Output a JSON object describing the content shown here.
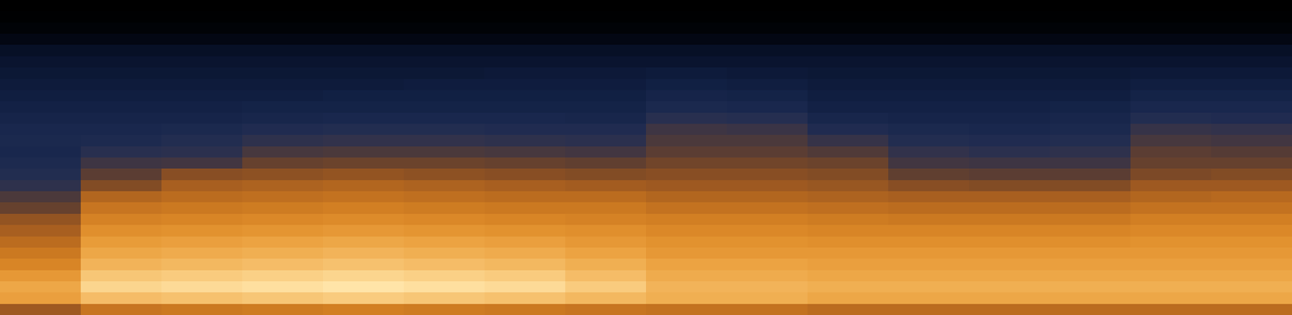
{
  "chart_data": {
    "type": "heatmap",
    "tick_labels": false,
    "cells": [
      [
        0.0,
        0.0,
        0.0,
        0.0,
        0.0,
        0.0,
        0.0,
        0.0,
        0.0,
        0.0,
        0.0,
        0.0,
        0.0,
        0.0,
        0.0,
        0.0
      ],
      [
        0.01,
        0.01,
        0.01,
        0.01,
        0.01,
        0.01,
        0.01,
        0.01,
        0.01,
        0.01,
        0.01,
        0.01,
        0.01,
        0.01,
        0.01,
        0.01
      ],
      [
        0.03,
        0.03,
        0.03,
        0.03,
        0.03,
        0.03,
        0.03,
        0.03,
        0.03,
        0.03,
        0.03,
        0.03,
        0.03,
        0.03,
        0.03,
        0.03
      ],
      [
        0.08,
        0.08,
        0.08,
        0.08,
        0.08,
        0.08,
        0.08,
        0.08,
        0.08,
        0.08,
        0.08,
        0.08,
        0.08,
        0.08,
        0.08,
        0.08
      ],
      [
        0.15,
        0.15,
        0.15,
        0.15,
        0.15,
        0.15,
        0.15,
        0.15,
        0.15,
        0.15,
        0.15,
        0.15,
        0.15,
        0.15,
        0.15,
        0.15
      ],
      [
        0.18,
        0.18,
        0.18,
        0.18,
        0.18,
        0.18,
        0.18,
        0.18,
        0.18,
        0.18,
        0.18,
        0.18,
        0.18,
        0.18,
        0.18,
        0.18
      ],
      [
        0.2,
        0.2,
        0.2,
        0.2,
        0.2,
        0.2,
        0.21,
        0.21,
        0.22,
        0.21,
        0.2,
        0.2,
        0.2,
        0.2,
        0.21,
        0.21
      ],
      [
        0.22,
        0.22,
        0.22,
        0.22,
        0.22,
        0.23,
        0.23,
        0.23,
        0.25,
        0.24,
        0.22,
        0.22,
        0.22,
        0.22,
        0.24,
        0.24
      ],
      [
        0.24,
        0.24,
        0.24,
        0.24,
        0.25,
        0.25,
        0.25,
        0.25,
        0.28,
        0.27,
        0.24,
        0.24,
        0.24,
        0.24,
        0.27,
        0.27
      ],
      [
        0.26,
        0.26,
        0.26,
        0.27,
        0.27,
        0.27,
        0.27,
        0.27,
        0.31,
        0.3,
        0.26,
        0.26,
        0.26,
        0.27,
        0.3,
        0.3
      ],
      [
        0.28,
        0.28,
        0.28,
        0.29,
        0.3,
        0.3,
        0.3,
        0.29,
        0.36,
        0.35,
        0.29,
        0.28,
        0.28,
        0.29,
        0.34,
        0.33
      ],
      [
        0.3,
        0.3,
        0.31,
        0.33,
        0.34,
        0.34,
        0.33,
        0.33,
        0.42,
        0.41,
        0.33,
        0.31,
        0.3,
        0.31,
        0.4,
        0.39
      ],
      [
        0.31,
        0.32,
        0.34,
        0.38,
        0.39,
        0.39,
        0.38,
        0.37,
        0.45,
        0.45,
        0.4,
        0.34,
        0.33,
        0.34,
        0.44,
        0.43
      ],
      [
        0.3,
        0.36,
        0.37,
        0.44,
        0.45,
        0.45,
        0.44,
        0.43,
        0.48,
        0.48,
        0.46,
        0.39,
        0.37,
        0.38,
        0.48,
        0.47
      ],
      [
        0.32,
        0.42,
        0.43,
        0.5,
        0.51,
        0.51,
        0.5,
        0.49,
        0.52,
        0.52,
        0.51,
        0.43,
        0.42,
        0.42,
        0.5,
        0.5
      ],
      [
        0.34,
        0.48,
        0.56,
        0.57,
        0.58,
        0.57,
        0.56,
        0.55,
        0.56,
        0.56,
        0.55,
        0.49,
        0.48,
        0.48,
        0.54,
        0.55
      ],
      [
        0.38,
        0.55,
        0.62,
        0.63,
        0.64,
        0.63,
        0.62,
        0.61,
        0.6,
        0.6,
        0.59,
        0.56,
        0.55,
        0.55,
        0.6,
        0.6
      ],
      [
        0.45,
        0.64,
        0.66,
        0.67,
        0.68,
        0.67,
        0.66,
        0.66,
        0.64,
        0.64,
        0.63,
        0.62,
        0.62,
        0.62,
        0.64,
        0.65
      ],
      [
        0.5,
        0.69,
        0.7,
        0.71,
        0.72,
        0.71,
        0.7,
        0.7,
        0.68,
        0.68,
        0.67,
        0.66,
        0.66,
        0.66,
        0.68,
        0.68
      ],
      [
        0.58,
        0.73,
        0.74,
        0.75,
        0.76,
        0.75,
        0.74,
        0.73,
        0.72,
        0.72,
        0.71,
        0.7,
        0.7,
        0.7,
        0.72,
        0.72
      ],
      [
        0.62,
        0.77,
        0.78,
        0.79,
        0.8,
        0.79,
        0.78,
        0.77,
        0.75,
        0.75,
        0.74,
        0.74,
        0.74,
        0.74,
        0.75,
        0.75
      ],
      [
        0.66,
        0.81,
        0.82,
        0.83,
        0.84,
        0.83,
        0.82,
        0.8,
        0.78,
        0.78,
        0.77,
        0.77,
        0.77,
        0.77,
        0.78,
        0.78
      ],
      [
        0.7,
        0.84,
        0.85,
        0.86,
        0.87,
        0.86,
        0.85,
        0.83,
        0.8,
        0.8,
        0.8,
        0.8,
        0.8,
        0.8,
        0.8,
        0.8
      ],
      [
        0.74,
        0.87,
        0.88,
        0.89,
        0.9,
        0.89,
        0.88,
        0.86,
        0.83,
        0.83,
        0.82,
        0.82,
        0.82,
        0.82,
        0.82,
        0.82
      ],
      [
        0.8,
        0.91,
        0.92,
        0.93,
        0.94,
        0.93,
        0.92,
        0.89,
        0.85,
        0.85,
        0.84,
        0.84,
        0.84,
        0.84,
        0.84,
        0.84
      ],
      [
        0.84,
        0.94,
        0.95,
        0.96,
        0.97,
        0.96,
        0.95,
        0.92,
        0.87,
        0.87,
        0.86,
        0.86,
        0.86,
        0.86,
        0.86,
        0.86
      ],
      [
        0.82,
        0.89,
        0.9,
        0.91,
        0.92,
        0.91,
        0.9,
        0.88,
        0.86,
        0.86,
        0.84,
        0.84,
        0.84,
        0.84,
        0.84,
        0.84
      ],
      [
        0.6,
        0.69,
        0.7,
        0.71,
        0.72,
        0.71,
        0.7,
        0.69,
        0.68,
        0.68,
        0.66,
        0.66,
        0.66,
        0.66,
        0.66,
        0.66
      ]
    ]
  }
}
